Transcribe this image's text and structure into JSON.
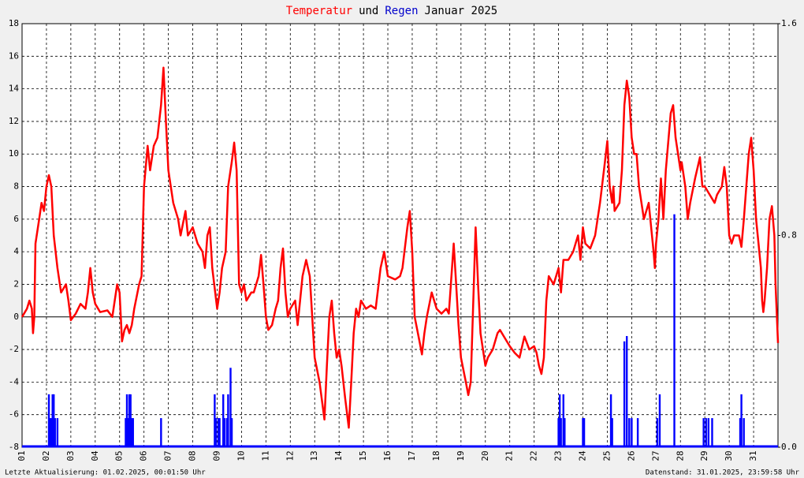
{
  "chart_data": {
    "type": "line",
    "title": [
      {
        "text": "Temperatur",
        "color": "#ff0000"
      },
      {
        "text": "und",
        "color": "#000000"
      },
      {
        "text": "Regen",
        "color": "#0000cc"
      },
      {
        "text": "Januar 2025",
        "color": "#000000"
      }
    ],
    "footer_left": "Letzte Aktualisierung: 01.02.2025, 00:01:50 Uhr",
    "footer_right": "Datenstand: 31.01.2025, 23:59:58 Uhr",
    "xlim": [
      1,
      32
    ],
    "ylim": [
      -8,
      18
    ],
    "y2lim": [
      0,
      1.6
    ],
    "xticks": [
      {
        "value": 1,
        "label": "01"
      },
      {
        "value": 2,
        "label": "02"
      },
      {
        "value": 3,
        "label": "03"
      },
      {
        "value": 4,
        "label": "04"
      },
      {
        "value": 5,
        "label": "05"
      },
      {
        "value": 6,
        "label": "06"
      },
      {
        "value": 7,
        "label": "07"
      },
      {
        "value": 8,
        "label": "08"
      },
      {
        "value": 9,
        "label": "09"
      },
      {
        "value": 10,
        "label": "10"
      },
      {
        "value": 11,
        "label": "11"
      },
      {
        "value": 12,
        "label": "12"
      },
      {
        "value": 13,
        "label": "13"
      },
      {
        "value": 14,
        "label": "14"
      },
      {
        "value": 15,
        "label": "15"
      },
      {
        "value": 16,
        "label": "16"
      },
      {
        "value": 17,
        "label": "17"
      },
      {
        "value": 18,
        "label": "18"
      },
      {
        "value": 19,
        "label": "19"
      },
      {
        "value": 20,
        "label": "20"
      },
      {
        "value": 21,
        "label": "21"
      },
      {
        "value": 22,
        "label": "22"
      },
      {
        "value": 23,
        "label": "23"
      },
      {
        "value": 24,
        "label": "24"
      },
      {
        "value": 25,
        "label": "25"
      },
      {
        "value": 26,
        "label": "26"
      },
      {
        "value": 27,
        "label": "27"
      },
      {
        "value": 28,
        "label": "28"
      },
      {
        "value": 29,
        "label": "29"
      },
      {
        "value": 30,
        "label": "30"
      },
      {
        "value": 31,
        "label": "31"
      }
    ],
    "yticks": [
      -8,
      -6,
      -4,
      -2,
      0,
      2,
      4,
      6,
      8,
      10,
      12,
      14,
      16,
      18
    ],
    "y2ticks": [
      {
        "value": 0,
        "label": "0.0"
      },
      0.8,
      1.6
    ],
    "grid": true,
    "series": [
      {
        "type": "line",
        "color": "#ff0000",
        "axis": "y",
        "x": [
          1,
          1.2,
          1.3,
          1.4,
          1.45,
          1.5,
          1.55,
          1.7,
          1.8,
          1.9,
          2,
          2.1,
          2.2,
          2.3,
          2.45,
          2.6,
          2.8,
          2.9,
          3,
          3.2,
          3.4,
          3.6,
          3.7,
          3.8,
          3.9,
          4,
          4.2,
          4.5,
          4.7,
          4.9,
          5,
          5.1,
          5.2,
          5.3,
          5.4,
          5.5,
          5.6,
          5.8,
          5.9,
          6,
          6.15,
          6.25,
          6.4,
          6.55,
          6.7,
          6.8,
          6.9,
          7,
          7.2,
          7.4,
          7.5,
          7.7,
          7.8,
          8,
          8.2,
          8.4,
          8.5,
          8.6,
          8.7,
          8.8,
          9,
          9.1,
          9.2,
          9.35,
          9.45,
          9.6,
          9.7,
          9.8,
          9.9,
          10,
          10.1,
          10.2,
          10.4,
          10.5,
          10.7,
          10.8,
          10.9,
          11,
          11.1,
          11.25,
          11.4,
          11.5,
          11.6,
          11.7,
          11.8,
          11.9,
          12,
          12.2,
          12.3,
          12.4,
          12.5,
          12.65,
          12.8,
          12.9,
          13,
          13.2,
          13.4,
          13.5,
          13.6,
          13.7,
          13.8,
          13.9,
          14,
          14.1,
          14.25,
          14.4,
          14.5,
          14.6,
          14.7,
          14.8,
          14.9,
          15.1,
          15.3,
          15.5,
          15.7,
          15.85,
          16,
          16.3,
          16.5,
          16.6,
          16.8,
          16.9,
          17,
          17.1,
          17.3,
          17.4,
          17.5,
          17.6,
          17.8,
          17.9,
          18,
          18.2,
          18.4,
          18.5,
          18.7,
          18.8,
          18.9,
          19,
          19.2,
          19.3,
          19.4,
          19.6,
          19.7,
          19.8,
          20,
          20.1,
          20.3,
          20.5,
          20.6,
          20.8,
          21,
          21.2,
          21.4,
          21.6,
          21.8,
          22,
          22.1,
          22.2,
          22.3,
          22.4,
          22.5,
          22.6,
          22.8,
          23,
          23.1,
          23.2,
          23.4,
          23.6,
          23.8,
          23.9,
          24,
          24.1,
          24.3,
          24.5,
          24.7,
          24.9,
          25,
          25.1,
          25.2,
          25.25,
          25.3,
          25.5,
          25.6,
          25.7,
          25.8,
          25.9,
          26,
          26.1,
          26.2,
          26.3,
          26.4,
          26.5,
          26.7,
          26.9,
          26.95,
          27,
          27.1,
          27.2,
          27.3,
          27.4,
          27.6,
          27.7,
          27.8,
          27.9,
          28,
          28.05,
          28.2,
          28.3,
          28.4,
          28.6,
          28.8,
          28.9,
          29,
          29.2,
          29.4,
          29.5,
          29.7,
          29.8,
          29.9,
          30,
          30.1,
          30.2,
          30.4,
          30.5,
          30.6,
          30.7,
          30.8,
          30.9,
          31,
          31.1,
          31.2,
          31.3,
          31.35,
          31.4,
          31.45,
          31.55,
          31.65,
          31.75,
          31.85,
          31.9,
          32
        ],
        "values": [
          0,
          0.5,
          1,
          0.5,
          -1,
          0,
          4.5,
          6,
          7,
          6.5,
          8,
          8.7,
          8,
          5,
          3,
          1.5,
          2,
          1,
          -0.2,
          0.2,
          0.8,
          0.5,
          1.5,
          3,
          1.5,
          0.8,
          0.3,
          0.4,
          0,
          2,
          1.5,
          -1.5,
          -0.8,
          -0.5,
          -1,
          -0.5,
          0.5,
          2,
          2.5,
          8,
          10.5,
          9,
          10.5,
          11,
          13,
          15.3,
          12,
          9,
          7,
          6,
          5,
          6.5,
          5,
          5.5,
          4.5,
          4,
          3,
          5,
          5.5,
          3,
          0.5,
          1.5,
          3,
          4,
          8,
          9.5,
          10.7,
          9,
          2,
          1.5,
          2,
          1,
          1.5,
          1.5,
          2.5,
          3.8,
          2,
          0,
          -0.8,
          -0.5,
          0.5,
          1,
          3,
          4.2,
          1.5,
          0,
          0.5,
          1,
          -0.5,
          1,
          2.5,
          3.5,
          2.5,
          0,
          -2.5,
          -4,
          -6.3,
          -3,
          0,
          1,
          -1,
          -2.5,
          -2,
          -3,
          -5,
          -6.8,
          -4,
          -1,
          0.5,
          0,
          1,
          0.5,
          0.7,
          0.5,
          3,
          4,
          2.5,
          2.3,
          2.5,
          3,
          5.5,
          6.5,
          4,
          0,
          -1.5,
          -2.3,
          -1,
          0,
          1.5,
          1,
          0.5,
          0.2,
          0.5,
          0.2,
          4.5,
          2,
          -0.5,
          -2.5,
          -4,
          -4.8,
          -4,
          5.5,
          2,
          -1,
          -3,
          -2.5,
          -2,
          -1,
          -0.8,
          -1.3,
          -1.8,
          -2.2,
          -2.5,
          -1.2,
          -2,
          -1.8,
          -2.2,
          -3,
          -3.5,
          -2.5,
          1,
          2.5,
          2,
          3,
          1.5,
          3.5,
          3.5,
          4,
          5,
          3.5,
          5.5,
          4.5,
          4.2,
          5,
          7,
          9.5,
          10.8,
          8,
          7,
          8,
          6.5,
          7,
          9,
          13,
          14.5,
          13.5,
          11,
          10,
          10,
          8,
          7,
          6,
          7,
          4,
          3,
          4.5,
          6,
          8.5,
          6,
          9,
          12.5,
          13,
          11,
          10,
          9,
          9.5,
          8,
          6,
          7,
          8.5,
          9.8,
          8,
          8,
          7.5,
          7,
          7.5,
          8,
          9.2,
          8,
          5,
          4.5,
          5,
          5,
          4.3,
          6,
          8,
          10,
          11,
          9,
          6,
          4.5,
          3,
          1,
          0.3,
          1,
          3,
          6,
          6.8,
          5,
          2,
          -1.6
        ]
      },
      {
        "type": "bar",
        "color": "#0000ff",
        "axis": "y2",
        "x": [
          2.1,
          2.15,
          2.2,
          2.25,
          2.3,
          2.35,
          2.45,
          5.25,
          5.3,
          5.35,
          5.4,
          5.45,
          5.5,
          5.55,
          6.7,
          8.9,
          8.95,
          9.05,
          9.1,
          9.25,
          9.3,
          9.4,
          9.45,
          9.55,
          9.6,
          23,
          23.05,
          23.1,
          23.2,
          23.25,
          24,
          24.05,
          25.15,
          25.2,
          25.7,
          25.8,
          25.9,
          26,
          26.25,
          27.05,
          27.15,
          27.75,
          28.95,
          29.05,
          29.15,
          29.3,
          30.45,
          30.5,
          30.6
        ],
        "values": [
          0.2,
          0.11,
          0.11,
          0.2,
          0.2,
          0.11,
          0.11,
          0.11,
          0.2,
          0.11,
          0.2,
          0.2,
          0.11,
          0.11,
          0.11,
          0.2,
          0.11,
          0.11,
          0.11,
          0.2,
          0.11,
          0.11,
          0.2,
          0.3,
          0.11,
          0.11,
          0.2,
          0.11,
          0.2,
          0.11,
          0.11,
          0.11,
          0.2,
          0.11,
          0.4,
          0.42,
          0.11,
          0.11,
          0.11,
          0.11,
          0.2,
          0.88,
          0.11,
          0.11,
          0.11,
          0.11,
          0.11,
          0.2,
          0.11
        ]
      }
    ]
  }
}
